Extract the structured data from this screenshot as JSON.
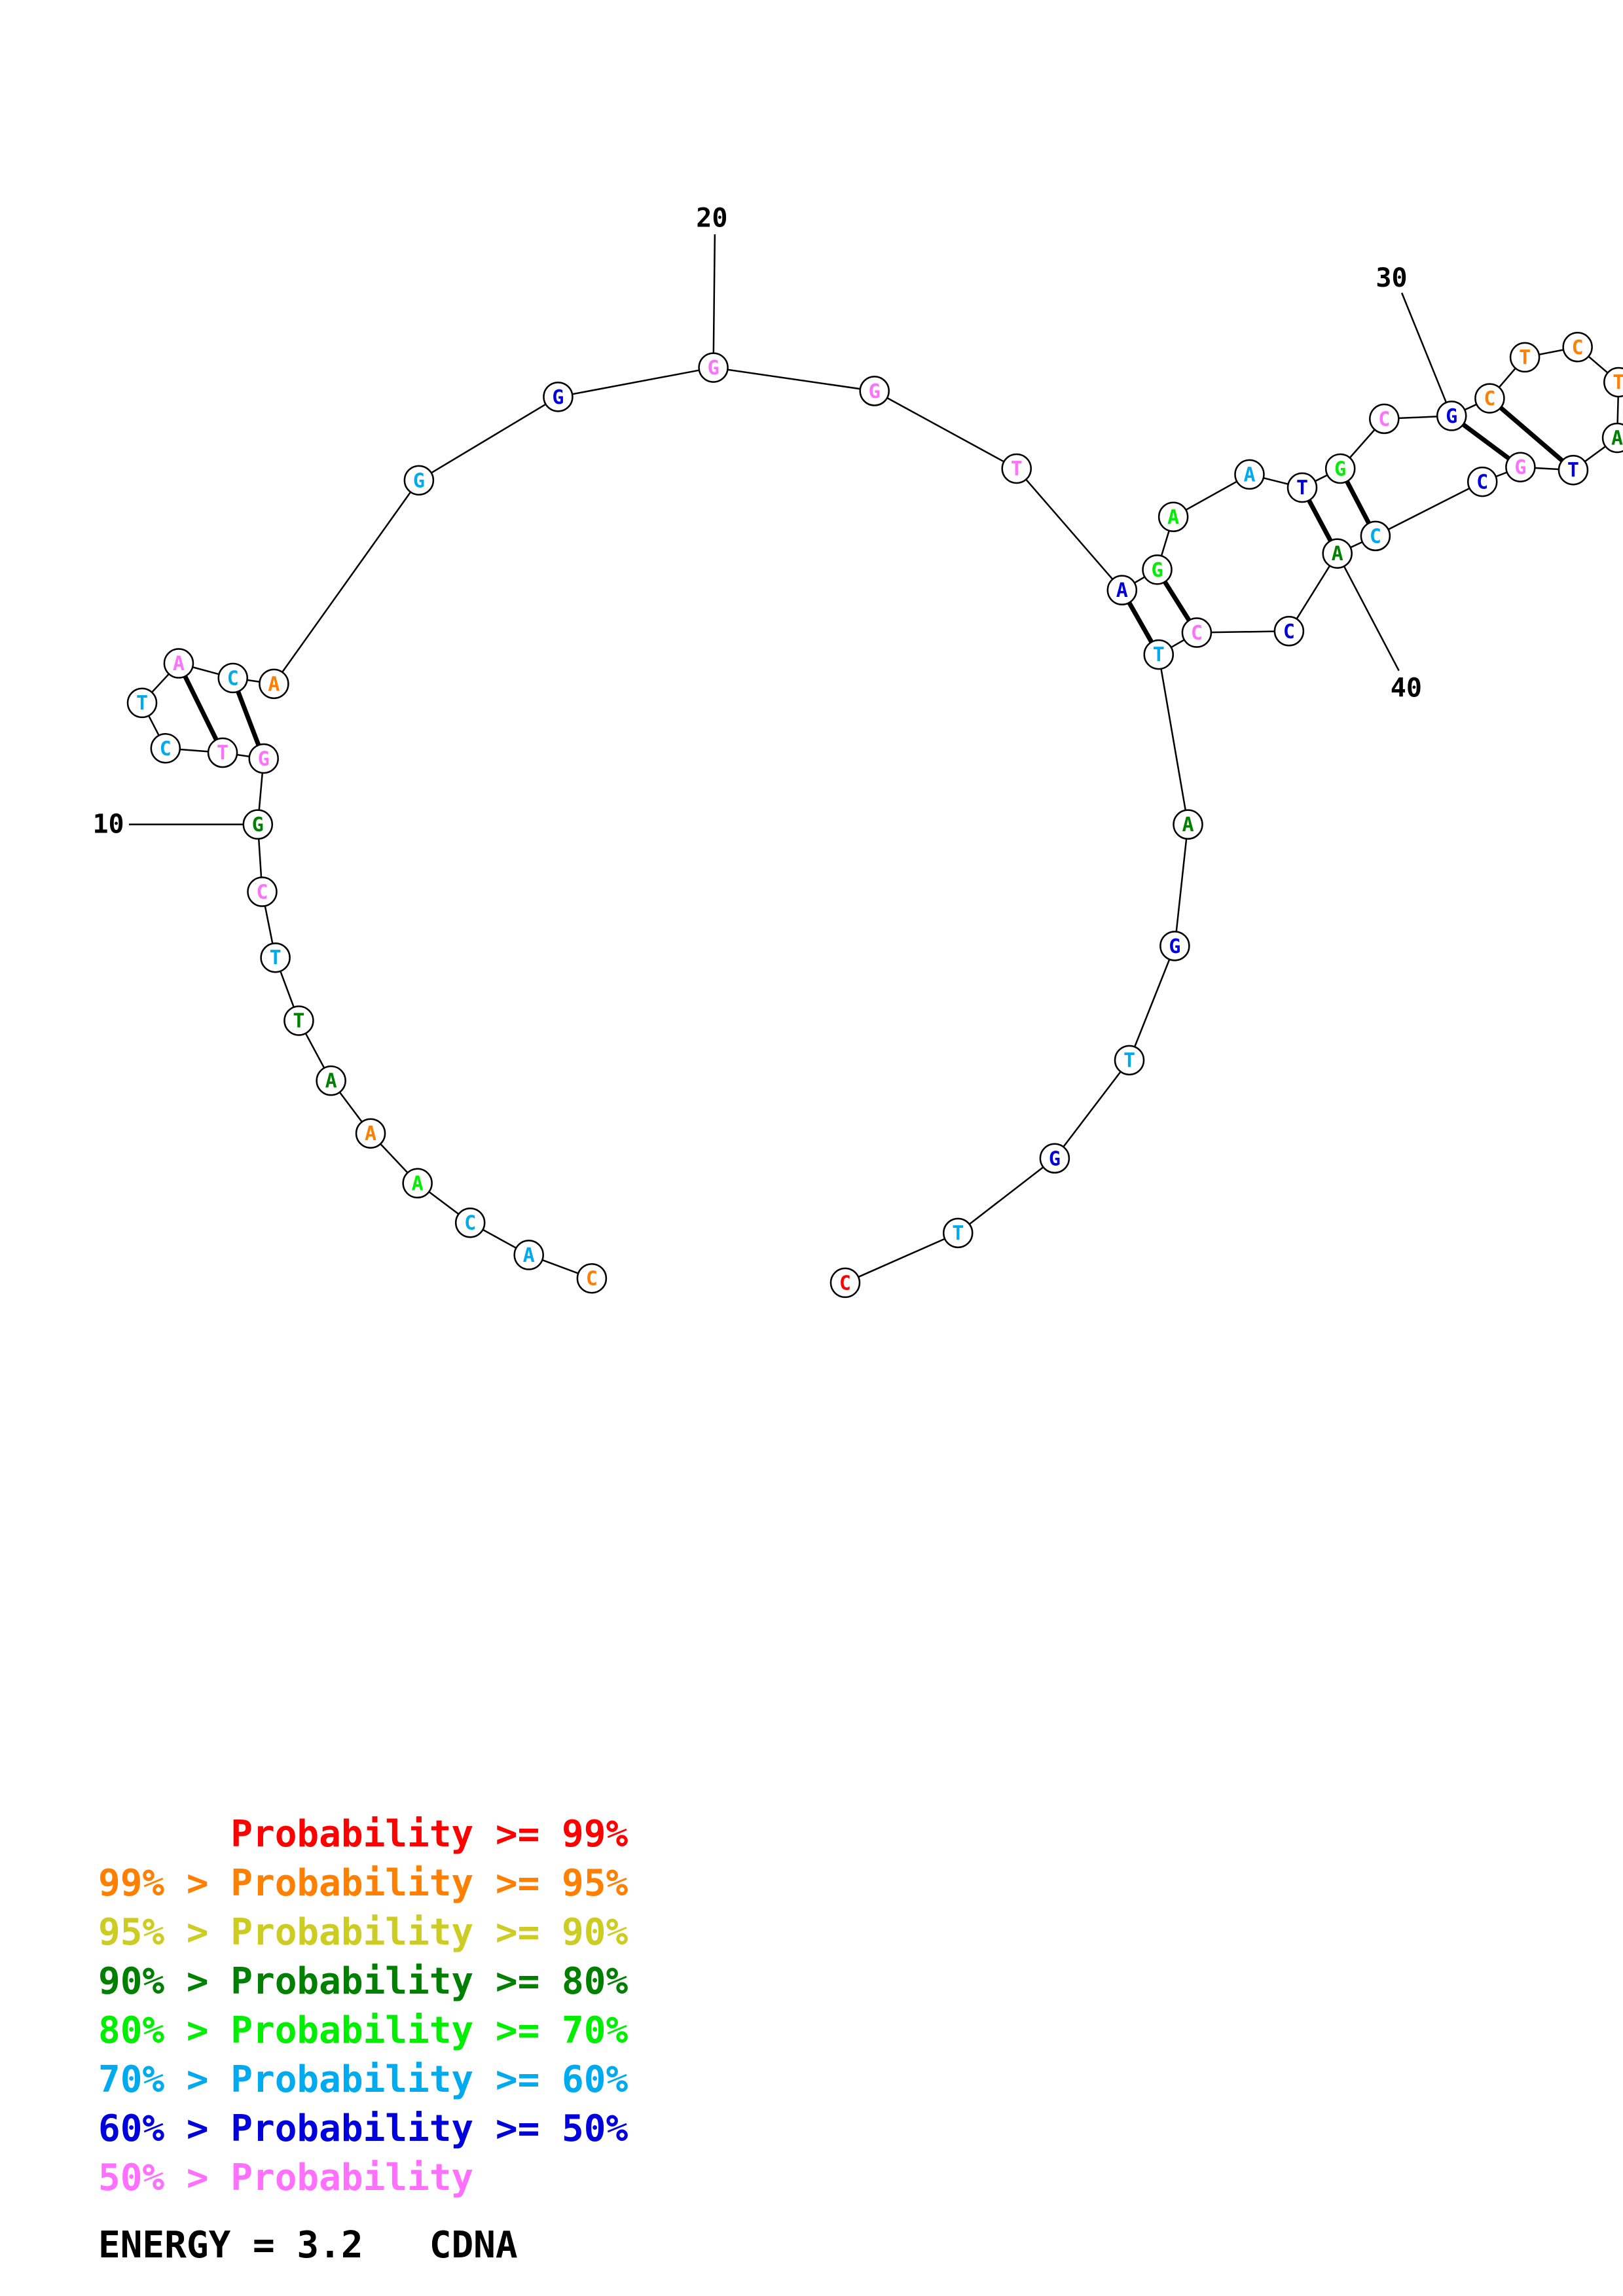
{
  "colors": {
    "p99": "#ff0000",
    "p95": "#ff7f00",
    "p90": "#cccc22",
    "p80": "#008000",
    "p70": "#00ee00",
    "p60": "#00aaee",
    "p50": "#0000dd",
    "plow": "#ff70ff"
  },
  "structure": {
    "sequence": [
      "C",
      "A",
      "C",
      "A",
      "A",
      "A",
      "T",
      "T",
      "C",
      "G",
      "G",
      "T",
      "C",
      "T",
      "A",
      "C",
      "A",
      "G",
      "G",
      "G",
      "G",
      "T",
      "A",
      "G",
      "A",
      "A",
      "T",
      "G",
      "C",
      "G",
      "C",
      "T",
      "C",
      "T",
      "A",
      "T",
      "G",
      "C",
      "C",
      "A",
      "C",
      "C",
      "T",
      "A",
      "G",
      "T",
      "G",
      "T",
      "C"
    ],
    "probability_class": [
      "p95",
      "p60",
      "p60",
      "p70",
      "p95",
      "p80",
      "p80",
      "p60",
      "plow",
      "p80",
      "plow",
      "plow",
      "p60",
      "p60",
      "plow",
      "p60",
      "p95",
      "p60",
      "p50",
      "plow",
      "plow",
      "plow",
      "p50",
      "p70",
      "p70",
      "p60",
      "p50",
      "p70",
      "plow",
      "p50",
      "p95",
      "p95",
      "p95",
      "p95",
      "p80",
      "p50",
      "plow",
      "p50",
      "p60",
      "p80",
      "p50",
      "plow",
      "p60",
      "p80",
      "p50",
      "p60",
      "p50",
      "p60",
      "p99"
    ],
    "pairs": [
      [
        10,
        15
      ],
      [
        11,
        14
      ],
      [
        22,
        42
      ],
      [
        23,
        41
      ],
      [
        26,
        39
      ],
      [
        27,
        38
      ],
      [
        29,
        36
      ],
      [
        30,
        35
      ]
    ],
    "position_labels": [
      {
        "index": 9,
        "text": "10"
      },
      {
        "index": 19,
        "text": "20"
      },
      {
        "index": 29,
        "text": "30"
      },
      {
        "index": 39,
        "text": "40"
      }
    ]
  },
  "legend": [
    {
      "prefix": "",
      "label": "Probability",
      "suffix": " >= 99%",
      "color_key": "p99"
    },
    {
      "prefix": "99% > ",
      "label": "Probability",
      "suffix": " >= 95%",
      "color_key": "p95"
    },
    {
      "prefix": "95% > ",
      "label": "Probability",
      "suffix": " >= 90%",
      "color_key": "p90"
    },
    {
      "prefix": "90% > ",
      "label": "Probability",
      "suffix": " >= 80%",
      "color_key": "p80"
    },
    {
      "prefix": "80% > ",
      "label": "Probability",
      "suffix": " >= 70%",
      "color_key": "p70"
    },
    {
      "prefix": "70% > ",
      "label": "Probability",
      "suffix": " >= 60%",
      "color_key": "p60"
    },
    {
      "prefix": "60% > ",
      "label": "Probability",
      "suffix": " >= 50%",
      "color_key": "p50"
    },
    {
      "prefix": "50% > ",
      "label": "Probability",
      "suffix": "",
      "color_key": "plow"
    }
  ],
  "footer": {
    "energy": "ENERGY = 3.2",
    "molecule": "CDNA"
  }
}
